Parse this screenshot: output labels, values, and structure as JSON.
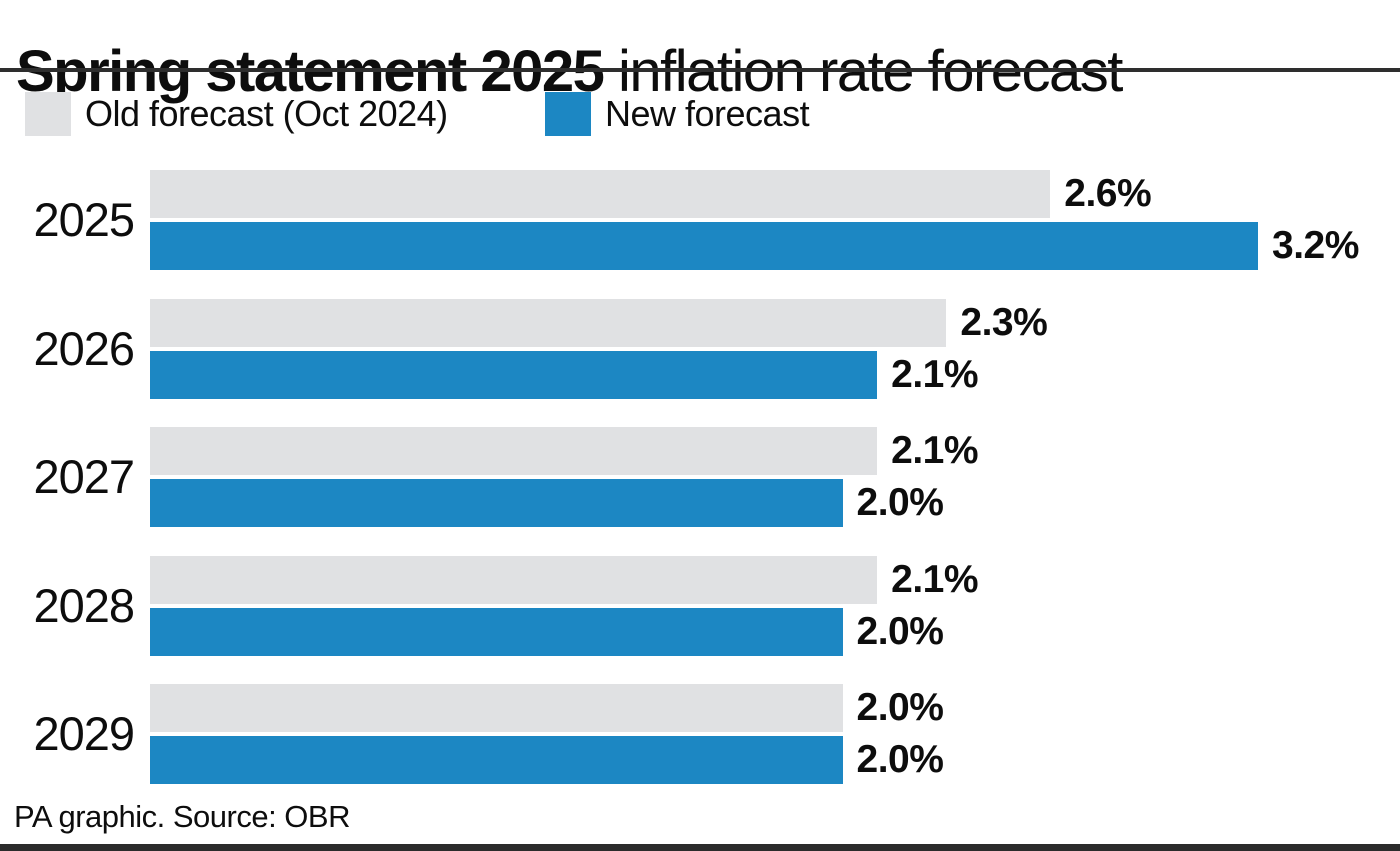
{
  "title": {
    "bold_part": "Spring statement 2025",
    "regular_part": " inflation rate forecast"
  },
  "legend": {
    "items": [
      {
        "label": "Old forecast (Oct 2024)",
        "color": "#e0e1e3"
      },
      {
        "label": "New forecast",
        "color": "#1c87c3"
      }
    ]
  },
  "footer": {
    "source_line": "PA graphic. Source: OBR"
  },
  "colors": {
    "old_bar": "#e0e1e3",
    "new_bar": "#1c87c3",
    "rule_dark": "#2e2e2e",
    "text": "#0d0d0d"
  },
  "chart_data": {
    "type": "bar",
    "orientation": "horizontal",
    "title": "Spring statement 2025 inflation rate forecast",
    "categories": [
      "2025",
      "2026",
      "2027",
      "2028",
      "2029"
    ],
    "series": [
      {
        "name": "Old forecast (Oct 2024)",
        "color": "#e0e1e3",
        "values": [
          2.6,
          2.3,
          2.1,
          2.1,
          2.0
        ]
      },
      {
        "name": "New forecast",
        "color": "#1c87c3",
        "values": [
          3.2,
          2.1,
          2.0,
          2.0,
          2.0
        ]
      }
    ],
    "value_labels": [
      [
        "2.6%",
        "3.2%"
      ],
      [
        "2.3%",
        "2.1%"
      ],
      [
        "2.1%",
        "2.0%"
      ],
      [
        "2.1%",
        "2.0%"
      ],
      [
        "2.0%",
        "2.0%"
      ]
    ],
    "xlabel": "",
    "ylabel": "",
    "xlim": [
      0,
      3.61
    ],
    "grid": false,
    "legend_position": "top-left"
  }
}
